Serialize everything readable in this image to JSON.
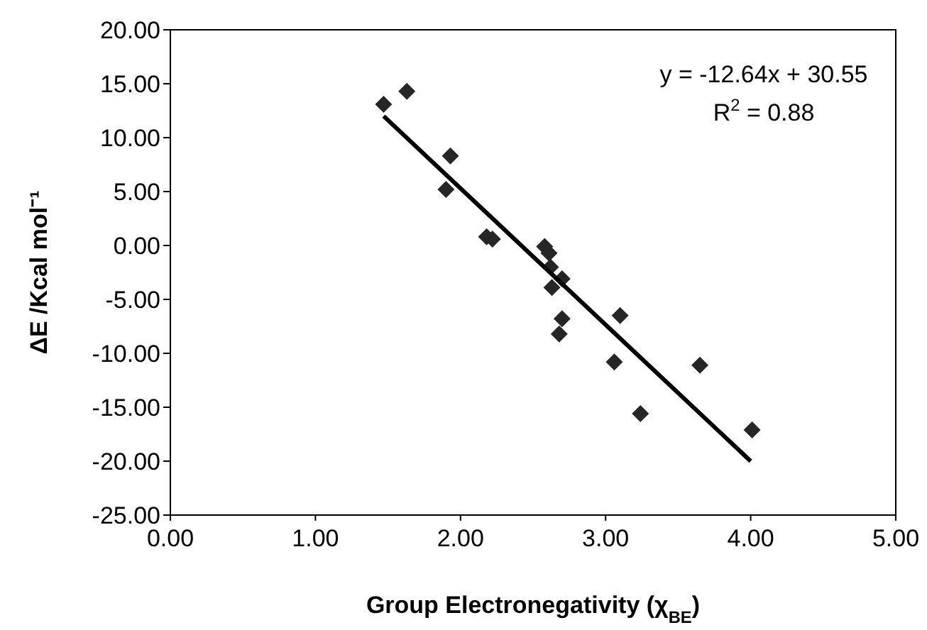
{
  "chart_data": {
    "type": "scatter",
    "xlabel": "Group Electronegativity (χ$_{BE}$)",
    "ylabel": "ΔE /Kcal mol⁻¹",
    "xlim": [
      0,
      5
    ],
    "xticks": [
      {
        "value": 0,
        "label": "0.00"
      },
      {
        "value": 1,
        "label": "1.00"
      },
      {
        "value": 2,
        "label": "2.00"
      },
      {
        "value": 3,
        "label": "3.00"
      },
      {
        "value": 4,
        "label": "4.00"
      },
      {
        "value": 5,
        "label": "5.00"
      }
    ],
    "ylim": [
      -25,
      20
    ],
    "yticks": [
      {
        "value": -25,
        "label": "-25.00"
      },
      {
        "value": -20,
        "label": "-20.00"
      },
      {
        "value": -15,
        "label": "-15.00"
      },
      {
        "value": -10,
        "label": "-10.00"
      },
      {
        "value": -5,
        "label": "-5.00"
      },
      {
        "value": 0,
        "label": "0.00"
      },
      {
        "value": 5,
        "label": "5.00"
      },
      {
        "value": 10,
        "label": "10.00"
      },
      {
        "value": 15,
        "label": "15.00"
      },
      {
        "value": 20,
        "label": "20.00"
      }
    ],
    "marker": "diamond",
    "annotations": [
      "y = -12.64x + 30.55",
      "R$^{2}$ = 0.88"
    ],
    "series": [
      {
        "color": "#262626",
        "x": [
          1.47,
          1.63,
          1.93,
          1.9,
          2.18,
          2.22,
          2.58,
          2.61,
          2.62,
          2.7,
          2.63,
          2.7,
          2.68,
          3.1,
          3.06,
          3.65,
          3.24,
          4.01
        ],
        "values": [
          13.1,
          14.3,
          8.3,
          5.2,
          0.8,
          0.6,
          -0.1,
          -0.7,
          -2.0,
          -3.1,
          -3.9,
          -6.8,
          -8.2,
          -6.5,
          -10.8,
          -11.1,
          -15.6,
          -17.1
        ]
      },
      {
        "type": "line",
        "color": "#000000",
        "marker": "none",
        "line_style": "solid",
        "x": [
          1.47,
          4.0
        ],
        "values": [
          12.0,
          -20.0
        ]
      }
    ]
  }
}
